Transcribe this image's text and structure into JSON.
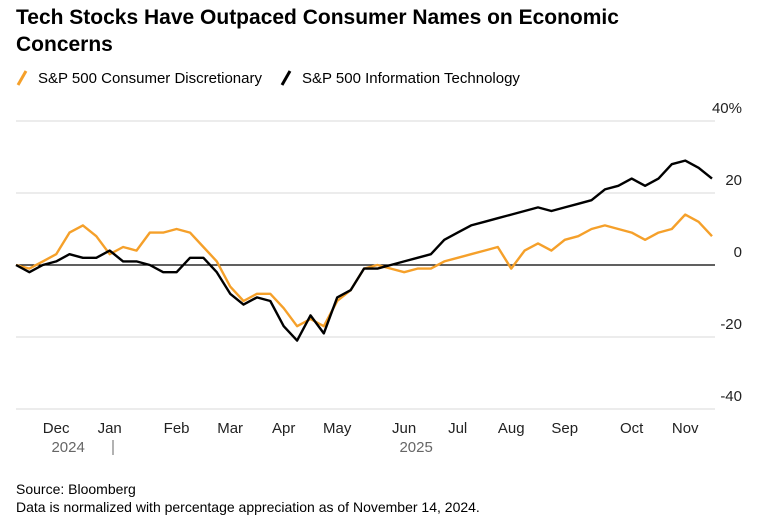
{
  "chart_data": {
    "type": "line",
    "title": "Tech Stocks Have Outpaced Consumer Names on Economic Concerns",
    "categories": [
      null,
      null,
      null,
      "Dec",
      null,
      null,
      null,
      "Jan",
      null,
      null,
      null,
      null,
      "Feb",
      null,
      null,
      null,
      "Mar",
      null,
      null,
      null,
      "Apr",
      null,
      null,
      null,
      "May",
      null,
      null,
      null,
      null,
      "Jun",
      null,
      null,
      null,
      "Jul",
      null,
      null,
      null,
      "Aug",
      null,
      null,
      null,
      "Sep",
      null,
      null,
      null,
      null,
      "Oct",
      null,
      null,
      null,
      "Nov",
      null,
      null
    ],
    "x_group_labels": [
      "2024",
      "2025"
    ],
    "series": [
      {
        "name": "S&P 500 Consumer Discretionary",
        "color": "#f5a02a",
        "values": [
          0,
          -1,
          1,
          3,
          9,
          11,
          8,
          3,
          5,
          4,
          9,
          9,
          10,
          9,
          5,
          1,
          -6,
          -10,
          -8,
          -8,
          -12,
          -17,
          -15,
          -17,
          -10,
          -7,
          -1,
          0,
          -1,
          -2,
          -1,
          -1,
          1,
          2,
          3,
          4,
          5,
          -1,
          4,
          6,
          4,
          7,
          8,
          10,
          11,
          10,
          9,
          7,
          9,
          10,
          14,
          12,
          8
        ]
      },
      {
        "name": "S&P 500 Information Technology",
        "color": "#000000",
        "values": [
          0,
          -2,
          0,
          1,
          3,
          2,
          2,
          4,
          1,
          1,
          0,
          -2,
          -2,
          2,
          2,
          -2,
          -8,
          -11,
          -9,
          -10,
          -17,
          -21,
          -14,
          -19,
          -9,
          -7,
          -1,
          -1,
          0,
          1,
          2,
          3,
          7,
          9,
          11,
          12,
          13,
          14,
          15,
          16,
          15,
          16,
          17,
          18,
          21,
          22,
          24,
          22,
          24,
          28,
          29,
          27,
          24
        ]
      }
    ],
    "ylim": [
      -40,
      40
    ],
    "yticks": [
      {
        "value": 40,
        "label": "40%"
      },
      20,
      0,
      -20,
      -40
    ],
    "grid": true,
    "legend": "top-left",
    "source": "Source: Bloomberg",
    "note": "Data is normalized with percentage appreciation as of November 14, 2024."
  }
}
